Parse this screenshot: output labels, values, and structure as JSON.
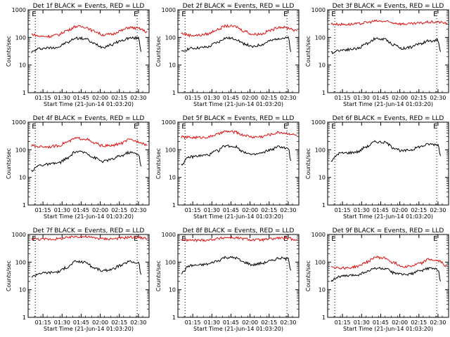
{
  "chart_data": [
    {
      "type": "line",
      "title": "Det 1f BLACK = Events, RED = LLD",
      "xlabel": "Start Time (21-Jun-14 01:03:20)",
      "ylabel": "Counts/sec",
      "yscale": "log",
      "ylim": [
        1,
        1000
      ],
      "xlim_minutes": [
        0,
        95
      ],
      "x_tick_labels": [
        "01:15",
        "01:30",
        "01:45",
        "02:00",
        "02:15",
        "02:30"
      ],
      "y_tick_labels": [
        "1",
        "10",
        "100",
        "1000"
      ],
      "markers": [
        {
          "label": "E",
          "x": "01:09"
        },
        {
          "label": "E",
          "x": "02:29"
        }
      ],
      "series": [
        {
          "name": "Events",
          "color": "#000000",
          "x": [
            "01:06",
            "01:13",
            "01:20",
            "01:27",
            "01:34",
            "01:41",
            "01:48",
            "01:55",
            "02:02",
            "02:09",
            "02:16",
            "02:23",
            "02:30",
            "02:32"
          ],
          "values": [
            30,
            40,
            42,
            45,
            65,
            95,
            90,
            60,
            45,
            55,
            75,
            95,
            95,
            30
          ]
        },
        {
          "name": "LLD",
          "color": "#dd1111",
          "x": [
            "01:06",
            "01:13",
            "01:20",
            "01:27",
            "01:34",
            "01:41",
            "01:48",
            "01:55",
            "02:02",
            "02:09",
            "02:16",
            "02:23",
            "02:30",
            "02:37"
          ],
          "values": [
            130,
            110,
            110,
            125,
            180,
            250,
            240,
            170,
            125,
            130,
            175,
            230,
            210,
            160
          ]
        }
      ]
    },
    {
      "type": "line",
      "title": "Det 2f BLACK = Events, RED = LLD",
      "xlabel": "Start Time (21-Jun-14 01:03:20)",
      "ylabel": "Counts/sec",
      "yscale": "log",
      "ylim": [
        1,
        1000
      ],
      "xlim_minutes": [
        0,
        95
      ],
      "x_tick_labels": [
        "01:15",
        "01:30",
        "01:45",
        "02:00",
        "02:15",
        "02:30"
      ],
      "y_tick_labels": [
        "1",
        "10",
        "100",
        "1000"
      ],
      "markers": [
        {
          "label": "E",
          "x": "01:09"
        },
        {
          "label": "E",
          "x": "02:29"
        }
      ],
      "series": [
        {
          "name": "Events",
          "color": "#000000",
          "x": [
            "01:06",
            "01:13",
            "01:20",
            "01:27",
            "01:34",
            "01:41",
            "01:48",
            "01:55",
            "02:02",
            "02:09",
            "02:16",
            "02:23",
            "02:30",
            "02:32"
          ],
          "values": [
            30,
            40,
            42,
            45,
            65,
            95,
            90,
            60,
            45,
            55,
            75,
            95,
            95,
            30
          ]
        },
        {
          "name": "LLD",
          "color": "#dd1111",
          "x": [
            "01:06",
            "01:13",
            "01:20",
            "01:27",
            "01:34",
            "01:41",
            "01:48",
            "01:55",
            "02:02",
            "02:09",
            "02:16",
            "02:23",
            "02:30",
            "02:37"
          ],
          "values": [
            140,
            120,
            120,
            135,
            190,
            260,
            250,
            175,
            130,
            135,
            180,
            240,
            220,
            170
          ]
        }
      ]
    },
    {
      "type": "line",
      "title": "Det 3f BLACK = Events, RED = LLD",
      "xlabel": "Start Time (21-Jun-14 01:03:20)",
      "ylabel": "Counts/sec",
      "yscale": "log",
      "ylim": [
        1,
        1000
      ],
      "xlim_minutes": [
        0,
        95
      ],
      "x_tick_labels": [
        "01:15",
        "01:30",
        "01:45",
        "02:00",
        "02:15",
        "02:30"
      ],
      "y_tick_labels": [
        "1",
        "10",
        "100",
        "1000"
      ],
      "markers": [
        {
          "label": "E",
          "x": "01:09"
        },
        {
          "label": "E",
          "x": "02:29"
        }
      ],
      "series": [
        {
          "name": "Events",
          "color": "#000000",
          "x": [
            "01:06",
            "01:13",
            "01:20",
            "01:27",
            "01:34",
            "01:41",
            "01:48",
            "01:55",
            "02:02",
            "02:09",
            "02:16",
            "02:23",
            "02:30",
            "02:32"
          ],
          "values": [
            28,
            35,
            37,
            40,
            60,
            90,
            85,
            55,
            40,
            45,
            60,
            75,
            80,
            30
          ]
        },
        {
          "name": "LLD",
          "color": "#dd1111",
          "x": [
            "01:06",
            "01:13",
            "01:20",
            "01:27",
            "01:34",
            "01:41",
            "01:48",
            "01:55",
            "02:02",
            "02:09",
            "02:16",
            "02:23",
            "02:30",
            "02:37"
          ],
          "values": [
            310,
            300,
            300,
            310,
            350,
            390,
            380,
            340,
            310,
            310,
            330,
            360,
            360,
            330
          ]
        }
      ]
    },
    {
      "type": "line",
      "title": "Det 4f BLACK = Events, RED = LLD",
      "xlabel": "Start Time (21-Jun-14 01:03:20)",
      "ylabel": "Counts/sec",
      "yscale": "log",
      "ylim": [
        1,
        1000
      ],
      "xlim_minutes": [
        0,
        95
      ],
      "x_tick_labels": [
        "01:15",
        "01:30",
        "01:45",
        "02:00",
        "02:15",
        "02:30"
      ],
      "y_tick_labels": [
        "1",
        "10",
        "100",
        "1000"
      ],
      "markers": [
        {
          "label": "E",
          "x": "01:09"
        },
        {
          "label": "E",
          "x": "02:29"
        }
      ],
      "series": [
        {
          "name": "Events",
          "color": "#000000",
          "x": [
            "01:06",
            "01:13",
            "01:20",
            "01:27",
            "01:34",
            "01:41",
            "01:48",
            "01:55",
            "02:02",
            "02:09",
            "02:16",
            "02:23",
            "02:30",
            "02:32"
          ],
          "values": [
            18,
            28,
            30,
            33,
            48,
            85,
            80,
            52,
            38,
            45,
            60,
            80,
            70,
            25
          ]
        },
        {
          "name": "LLD",
          "color": "#dd1111",
          "x": [
            "01:06",
            "01:13",
            "01:20",
            "01:27",
            "01:34",
            "01:41",
            "01:48",
            "01:55",
            "02:02",
            "02:09",
            "02:16",
            "02:23",
            "02:30",
            "02:37"
          ],
          "values": [
            140,
            130,
            130,
            140,
            190,
            260,
            250,
            175,
            140,
            140,
            170,
            230,
            200,
            150
          ]
        }
      ]
    },
    {
      "type": "line",
      "title": "Det 5f BLACK = Events, RED = LLD",
      "xlabel": "Start Time (21-Jun-14 01:03:20)",
      "ylabel": "Counts/sec",
      "yscale": "log",
      "ylim": [
        1,
        1000
      ],
      "xlim_minutes": [
        0,
        95
      ],
      "x_tick_labels": [
        "01:15",
        "01:30",
        "01:45",
        "02:00",
        "02:15",
        "02:30"
      ],
      "y_tick_labels": [
        "1",
        "10",
        "100",
        "1000"
      ],
      "markers": [
        {
          "label": "E",
          "x": "01:09"
        },
        {
          "label": "E",
          "x": "02:29"
        }
      ],
      "series": [
        {
          "name": "Events",
          "color": "#000000",
          "x": [
            "01:06",
            "01:13",
            "01:20",
            "01:27",
            "01:34",
            "01:41",
            "01:48",
            "01:55",
            "02:02",
            "02:09",
            "02:16",
            "02:23",
            "02:30",
            "02:32"
          ],
          "values": [
            30,
            55,
            60,
            65,
            90,
            140,
            130,
            85,
            65,
            75,
            100,
            130,
            110,
            40
          ]
        },
        {
          "name": "LLD",
          "color": "#dd1111",
          "x": [
            "01:06",
            "01:13",
            "01:20",
            "01:27",
            "01:34",
            "01:41",
            "01:48",
            "01:55",
            "02:02",
            "02:09",
            "02:16",
            "02:23",
            "02:30",
            "02:37"
          ],
          "values": [
            290,
            280,
            280,
            290,
            360,
            460,
            440,
            340,
            290,
            300,
            360,
            430,
            390,
            330
          ]
        }
      ]
    },
    {
      "type": "line",
      "title": "Det 6f BLACK = Events, RED = LLD",
      "xlabel": "Start Time (21-Jun-14 01:03:20)",
      "ylabel": "Counts/sec",
      "yscale": "log",
      "ylim": [
        1,
        1000
      ],
      "xlim_minutes": [
        0,
        95
      ],
      "x_tick_labels": [
        "01:15",
        "01:30",
        "01:45",
        "02:00",
        "02:15",
        "02:30"
      ],
      "y_tick_labels": [
        "1",
        "10",
        "100",
        "1000"
      ],
      "markers": [
        {
          "label": "E",
          "x": "01:09"
        },
        {
          "label": "E",
          "x": "02:29"
        }
      ],
      "series": [
        {
          "name": "Events",
          "color": "#000000",
          "x": [
            "01:06",
            "01:13",
            "01:20",
            "01:27",
            "01:34",
            "01:41",
            "01:48",
            "01:55",
            "02:02",
            "02:09",
            "02:16",
            "02:23",
            "02:30",
            "02:32"
          ],
          "values": [
            40,
            75,
            78,
            85,
            130,
            195,
            185,
            120,
            90,
            100,
            130,
            160,
            155,
            60
          ]
        }
      ]
    },
    {
      "type": "line",
      "title": "Det 7f BLACK = Events, RED = LLD",
      "xlabel": "Start Time (21-Jun-14 01:03:20)",
      "ylabel": "Counts/sec",
      "yscale": "log",
      "ylim": [
        1,
        1000
      ],
      "xlim_minutes": [
        0,
        95
      ],
      "x_tick_labels": [
        "01:15",
        "01:30",
        "01:45",
        "02:00",
        "02:15",
        "02:30"
      ],
      "y_tick_labels": [
        "1",
        "10",
        "100",
        "1000"
      ],
      "markers": [
        {
          "label": "E",
          "x": "01:09"
        },
        {
          "label": "E",
          "x": "02:29"
        }
      ],
      "series": [
        {
          "name": "Events",
          "color": "#000000",
          "x": [
            "01:06",
            "01:13",
            "01:20",
            "01:27",
            "01:34",
            "01:41",
            "01:48",
            "01:55",
            "02:02",
            "02:09",
            "02:16",
            "02:23",
            "02:30",
            "02:32"
          ],
          "values": [
            30,
            40,
            42,
            45,
            65,
            105,
            100,
            62,
            48,
            55,
            75,
            105,
            95,
            35
          ]
        },
        {
          "name": "LLD",
          "color": "#dd1111",
          "x": [
            "01:06",
            "01:13",
            "01:20",
            "01:27",
            "01:34",
            "01:41",
            "01:48",
            "01:55",
            "02:02",
            "02:09",
            "02:16",
            "02:23",
            "02:30",
            "02:37"
          ],
          "values": [
            700,
            680,
            680,
            700,
            760,
            850,
            830,
            760,
            700,
            700,
            740,
            800,
            780,
            720
          ]
        }
      ]
    },
    {
      "type": "line",
      "title": "Det 8f BLACK = Events, RED = LLD",
      "xlabel": "Start Time (21-Jun-14 01:03:20)",
      "ylabel": "Counts/sec",
      "yscale": "log",
      "ylim": [
        1,
        1000
      ],
      "xlim_minutes": [
        0,
        95
      ],
      "x_tick_labels": [
        "01:15",
        "01:30",
        "01:45",
        "02:00",
        "02:15",
        "02:30"
      ],
      "y_tick_labels": [
        "1",
        "10",
        "100",
        "1000"
      ],
      "markers": [
        {
          "label": "E",
          "x": "01:09"
        },
        {
          "label": "E",
          "x": "02:29"
        }
      ],
      "series": [
        {
          "name": "Events",
          "color": "#000000",
          "x": [
            "01:06",
            "01:13",
            "01:20",
            "01:27",
            "01:34",
            "01:41",
            "01:48",
            "01:55",
            "02:02",
            "02:09",
            "02:16",
            "02:23",
            "02:30",
            "02:32"
          ],
          "values": [
            40,
            75,
            78,
            85,
            110,
            150,
            145,
            100,
            80,
            90,
            110,
            140,
            130,
            50
          ]
        },
        {
          "name": "LLD",
          "color": "#dd1111",
          "x": [
            "01:06",
            "01:13",
            "01:20",
            "01:27",
            "01:34",
            "01:41",
            "01:48",
            "01:55",
            "02:02",
            "02:09",
            "02:16",
            "02:23",
            "02:30",
            "02:37"
          ],
          "values": [
            650,
            620,
            620,
            640,
            700,
            780,
            760,
            700,
            640,
            640,
            680,
            750,
            720,
            650
          ]
        }
      ]
    },
    {
      "type": "line",
      "title": "Det 9f BLACK = Events, RED = LLD",
      "xlabel": "Start Time (21-Jun-14 01:03:20)",
      "ylabel": "Counts/sec",
      "yscale": "log",
      "ylim": [
        1,
        1000
      ],
      "xlim_minutes": [
        0,
        95
      ],
      "x_tick_labels": [
        "01:15",
        "01:30",
        "01:45",
        "02:00",
        "02:15",
        "02:30"
      ],
      "y_tick_labels": [
        "1",
        "10",
        "100",
        "1000"
      ],
      "markers": [
        {
          "label": "E",
          "x": "01:09"
        },
        {
          "label": "E",
          "x": "02:29"
        }
      ],
      "series": [
        {
          "name": "Events",
          "color": "#000000",
          "x": [
            "01:06",
            "01:13",
            "01:20",
            "01:27",
            "01:34",
            "01:41",
            "01:48",
            "01:55",
            "02:02",
            "02:09",
            "02:16",
            "02:23",
            "02:30",
            "02:32"
          ],
          "values": [
            22,
            30,
            32,
            35,
            45,
            60,
            58,
            42,
            35,
            38,
            48,
            60,
            55,
            20
          ]
        },
        {
          "name": "LLD",
          "color": "#dd1111",
          "x": [
            "01:06",
            "01:13",
            "01:20",
            "01:27",
            "01:34",
            "01:41",
            "01:48",
            "01:55",
            "02:02",
            "02:09",
            "02:16",
            "02:23",
            "02:30",
            "02:37"
          ],
          "values": [
            70,
            62,
            62,
            70,
            100,
            150,
            140,
            95,
            70,
            72,
            90,
            125,
            110,
            75
          ]
        }
      ]
    }
  ]
}
